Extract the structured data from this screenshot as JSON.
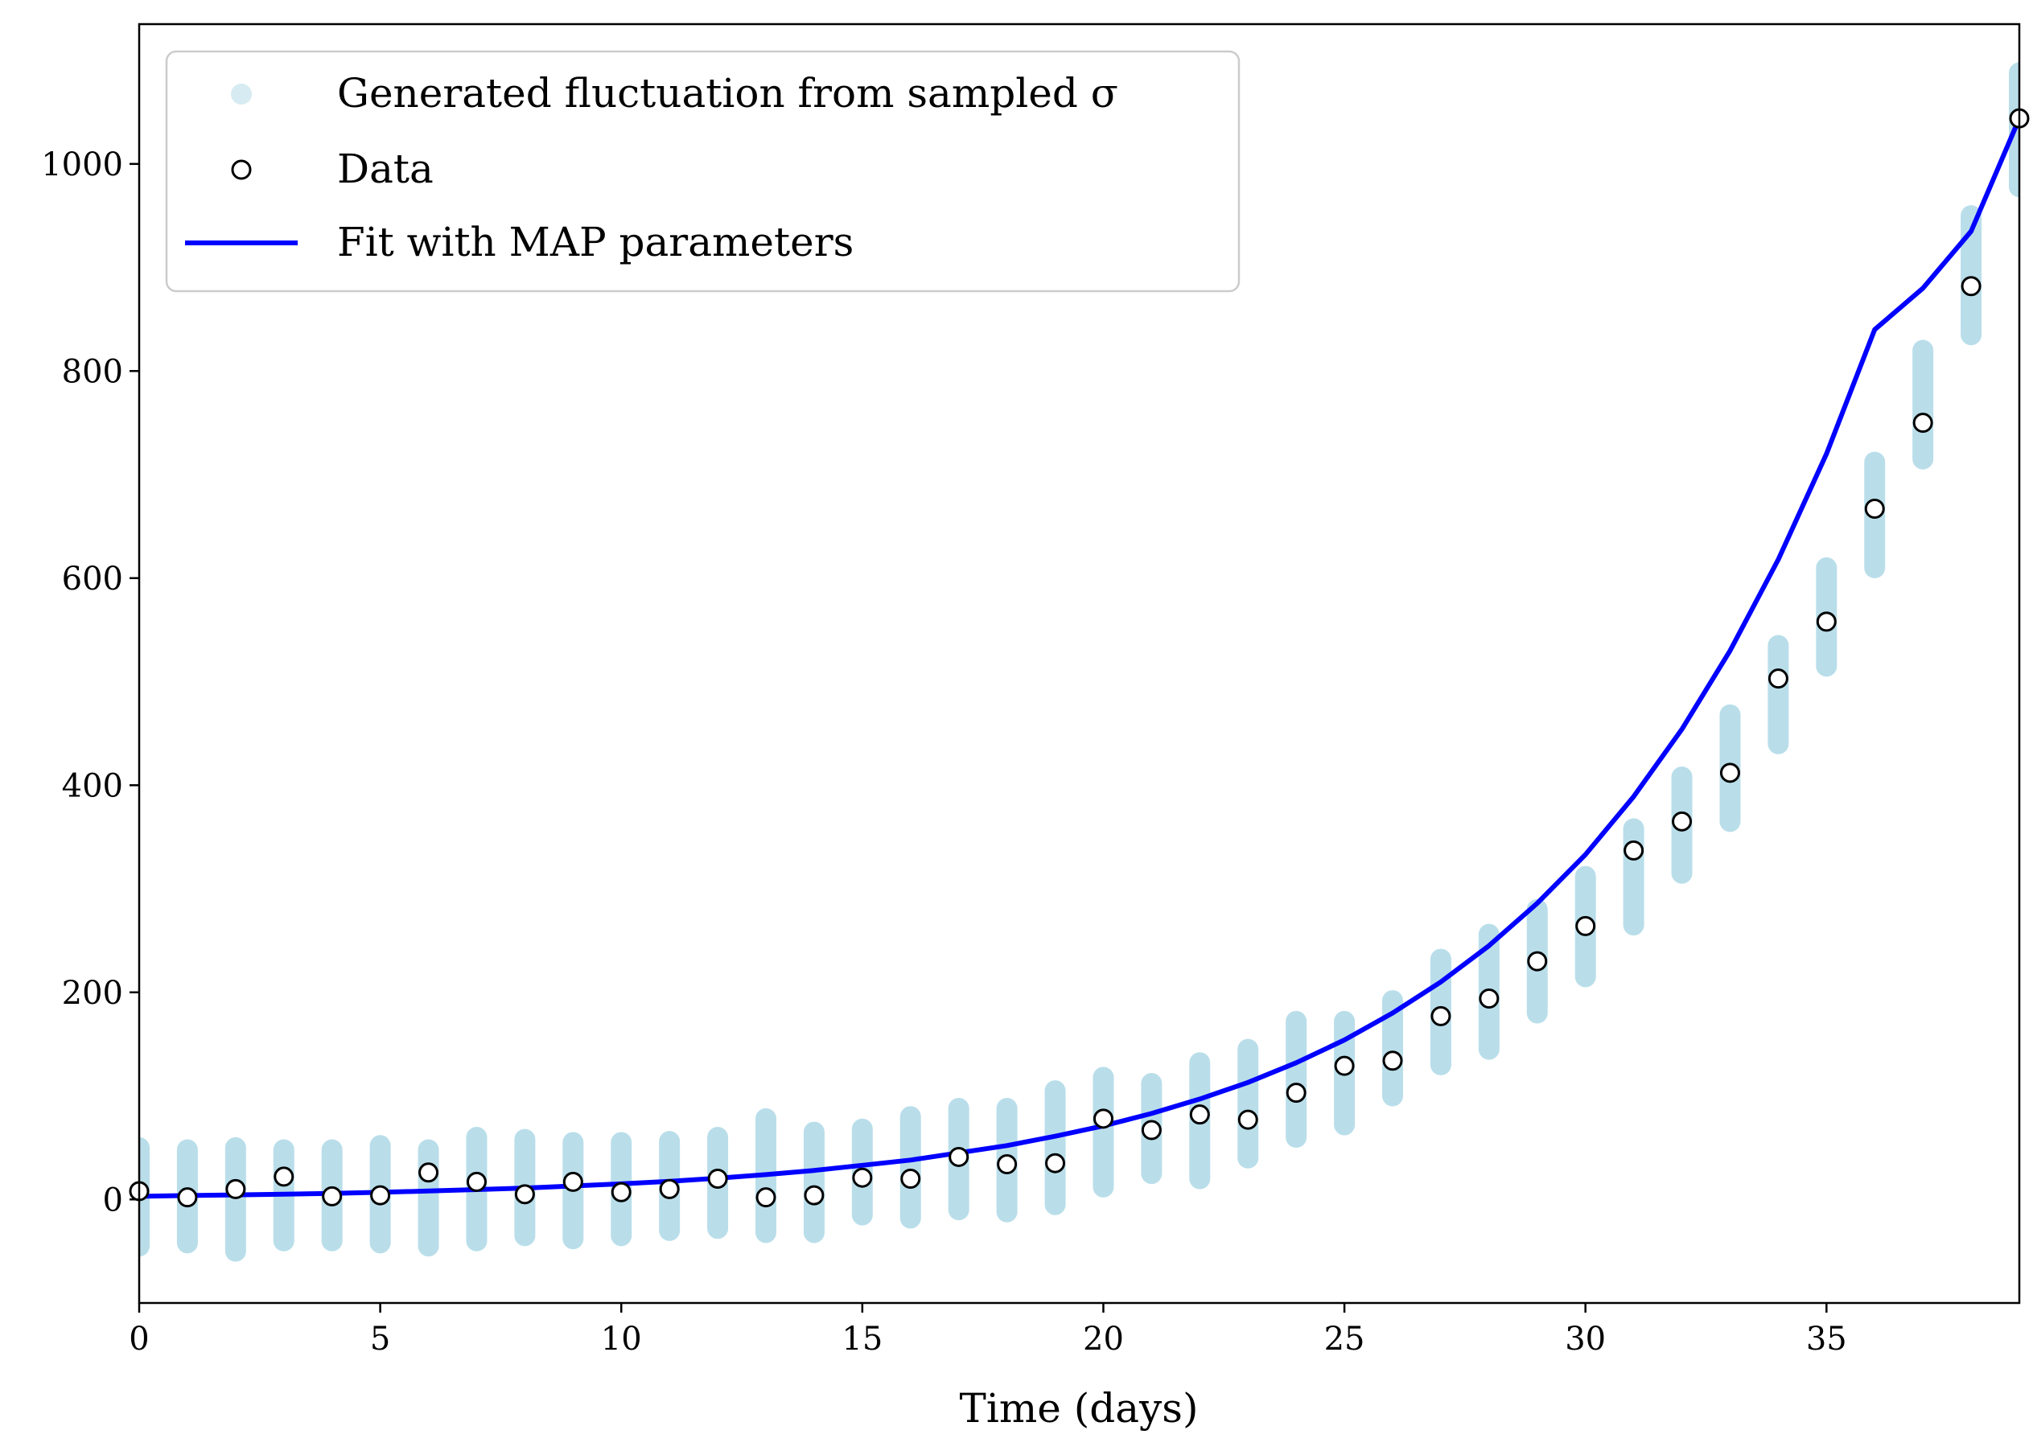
{
  "chart_data": {
    "type": "scatter",
    "xlabel": "Time (days)",
    "ylabel": "",
    "xlim": [
      0,
      39
    ],
    "ylim": [
      -100,
      1135
    ],
    "xticks": [
      0,
      5,
      10,
      15,
      20,
      25,
      30,
      35
    ],
    "yticks": [
      0,
      200,
      400,
      600,
      800,
      1000
    ],
    "grid": false,
    "legend_position": "top-left",
    "colors": {
      "fluctuation": "#add8e6",
      "data_marker_edge": "#000000",
      "data_marker_fill": "#ffffff",
      "fit_line": "#0000ff"
    },
    "legend": [
      {
        "key": "fluctuation",
        "label": "Generated fluctuation from sampled σ"
      },
      {
        "key": "data",
        "label": "Data"
      },
      {
        "key": "fit",
        "label": "Fit with MAP parameters"
      }
    ],
    "x": [
      0,
      1,
      2,
      3,
      4,
      5,
      6,
      7,
      8,
      9,
      10,
      11,
      12,
      13,
      14,
      15,
      16,
      17,
      18,
      19,
      20,
      21,
      22,
      23,
      24,
      25,
      26,
      27,
      28,
      29,
      30,
      31,
      32,
      33,
      34,
      35,
      36,
      37,
      38,
      39
    ],
    "series": [
      {
        "key": "data",
        "values": [
          8,
          2,
          10,
          22,
          3,
          4,
          26,
          17,
          5,
          17,
          7,
          10,
          20,
          2,
          4,
          21,
          20,
          41,
          34,
          35,
          78,
          67,
          82,
          77,
          103,
          129,
          134,
          177,
          194,
          230,
          264,
          337,
          365,
          412,
          503,
          558,
          667,
          750,
          882,
          1044
        ]
      },
      {
        "key": "fit",
        "values": [
          3,
          3.8,
          4.4,
          5.1,
          5.9,
          6.9,
          8.1,
          9.5,
          11,
          13,
          15,
          17.5,
          20.5,
          24,
          28,
          33,
          38,
          45,
          52,
          61,
          71,
          83,
          97,
          113,
          132,
          154,
          180,
          210,
          245,
          286,
          333,
          389,
          454,
          530,
          618,
          720,
          840,
          880,
          935,
          1044
        ]
      },
      {
        "key": "fluctuation",
        "low": [
          -45,
          -42,
          -50,
          -40,
          -40,
          -42,
          -45,
          -40,
          -35,
          -38,
          -35,
          -30,
          -28,
          -32,
          -32,
          -15,
          -18,
          -10,
          -12,
          -5,
          12,
          25,
          20,
          40,
          60,
          72,
          100,
          130,
          145,
          180,
          215,
          265,
          315,
          365,
          440,
          515,
          610,
          715,
          835,
          978
        ],
        "high": [
          50,
          48,
          50,
          48,
          48,
          52,
          48,
          60,
          58,
          55,
          55,
          56,
          60,
          78,
          65,
          68,
          80,
          88,
          88,
          105,
          118,
          112,
          132,
          145,
          172,
          172,
          192,
          232,
          256,
          280,
          312,
          358,
          408,
          468,
          535,
          610,
          712,
          820,
          950,
          1088
        ]
      }
    ]
  }
}
